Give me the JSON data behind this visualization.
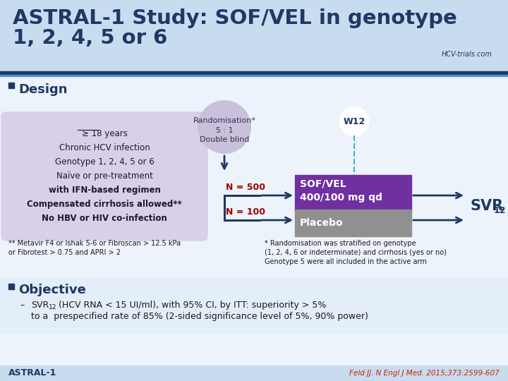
{
  "title_line1": "ASTRAL-1 Study: SOF/VEL in genotype",
  "title_line2": "1, 2, 4, 5 or 6",
  "title_color": "#1F3864",
  "bg_top": "#C8DCF0",
  "bg_body": "#E8F0F8",
  "separator_color1": "#1F3864",
  "separator_color2": "#5090C0",
  "design_label": "Design",
  "randomisation_text": "Randomisation*\n5 : 1\nDouble blind",
  "rand_circle_color": "#C8C0DC",
  "w12_label": "W12",
  "teal": "#40B0C8",
  "dark_blue": "#1F3864",
  "n500_label": "N = 500",
  "n100_label": "N = 100",
  "n_color": "#A00000",
  "sof_vel_label": "SOF/VEL\n400/100 mg qd",
  "sof_vel_color": "#7030A0",
  "placebo_label": "Placebo",
  "placebo_color": "#909090",
  "svr12_main": "SVR",
  "svr12_sub": "12",
  "inclusion_bg": "#D8D0E8",
  "inclusion_text_lines": [
    "≥ 18 years",
    "Chronic HCV infection",
    "Genotype 1, 2, 4, 5 or 6",
    "Naïve or pre-treatment",
    "with IFN-based regimen",
    "Compensated cirrhosis allowed**",
    "No HBV or HIV co-infection"
  ],
  "footnote1_lines": [
    "** Metavir F4 or Ishak 5-6 or Fibroscan > 12.5 kPa",
    "or Fibrotest > 0.75 and APRI > 2"
  ],
  "footnote2_lines": [
    "* Randomisation was stratified on genotype",
    "(1, 2, 4, 6 or indeterminate) and cirrhosis (yes or no)",
    "Genotype 5 were all included in the active arm"
  ],
  "objective_label": "Objective",
  "obj_dash": "–",
  "obj_line1_pre": "SVR",
  "obj_line1_sub": "12",
  "obj_line1_post": " (HCV RNA < 15 UI/ml), with 95% CI, by ITT: superiority > 5%",
  "obj_line2": "to a  prespecified rate of 85% (2-sided significance level of 5%, 90% power)",
  "bottom_left": "ASTRAL-1",
  "bottom_right": "Feld JJ. N Engl J Med. 2015;373:2599-607",
  "hcv_logo_text": "HCV-trials.com"
}
